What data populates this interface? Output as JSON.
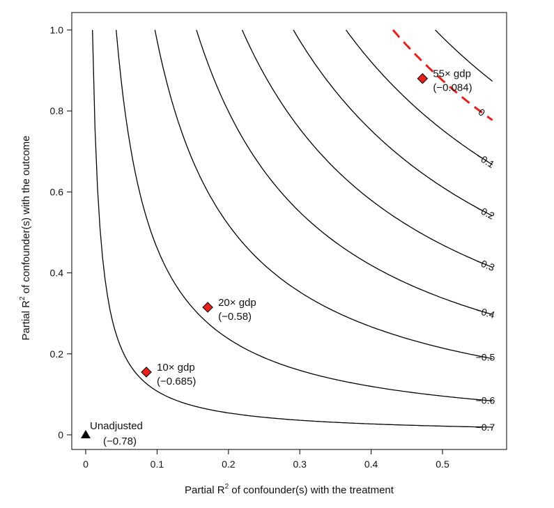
{
  "chart_data": {
    "type": "contour",
    "xlabel": {
      "prefix": "Partial R",
      "sup": "2",
      "suffix": " of confounder(s) with the treatment"
    },
    "ylabel": {
      "prefix": "Partial R",
      "sup": "2",
      "suffix": " of confounder(s) with the outcome"
    },
    "xlim": [
      -0.02,
      0.585
    ],
    "ylim": [
      -0.035,
      1.02
    ],
    "x_ticks": [
      0,
      0.1,
      0.2,
      0.3,
      0.4,
      0.5
    ],
    "x_tick_labels": [
      "0",
      "0.1",
      "0.2",
      "0.3",
      "0.4",
      "0.5"
    ],
    "y_ticks": [
      0,
      0.2,
      0.4,
      0.6,
      0.8,
      1.0
    ],
    "y_tick_labels": [
      "0",
      "0.2",
      "0.4",
      "0.6",
      "0.8",
      "1.0"
    ],
    "grid": false,
    "contours": [
      {
        "level": -0.7,
        "label": "−0.7",
        "k": 0.0098
      },
      {
        "level": -0.6,
        "label": "−0.6",
        "k": 0.044
      },
      {
        "level": -0.5,
        "label": "−0.5",
        "k": 0.1
      },
      {
        "level": -0.4,
        "label": "−0.4",
        "k": 0.16
      },
      {
        "level": -0.3,
        "label": "−0.3",
        "k": 0.226
      },
      {
        "level": -0.2,
        "label": "−0.2",
        "k": 0.3
      },
      {
        "level": -0.1,
        "label": "−0.1",
        "k": 0.376
      },
      {
        "level": 0,
        "label": "0",
        "k": 0.444,
        "style": "dashed",
        "color": "#e8201c"
      },
      {
        "level": 0.1,
        "label": "",
        "k": 0.505
      }
    ],
    "points": [
      {
        "x": 0,
        "y": 0,
        "marker": "triangle",
        "color": "#000000",
        "label": "Unadjusted",
        "value": "(−0.78)"
      },
      {
        "x": 0.085,
        "y": 0.155,
        "marker": "diamond",
        "color": "#e8201c",
        "label": "10× gdp",
        "value": "(−0.685)"
      },
      {
        "x": 0.171,
        "y": 0.315,
        "marker": "diamond",
        "color": "#e8201c",
        "label": "20× gdp",
        "value": "(−0.58)"
      },
      {
        "x": 0.472,
        "y": 0.88,
        "marker": "diamond",
        "color": "#e8201c",
        "label": "55× gdp",
        "value": "(−0.084)"
      }
    ]
  }
}
